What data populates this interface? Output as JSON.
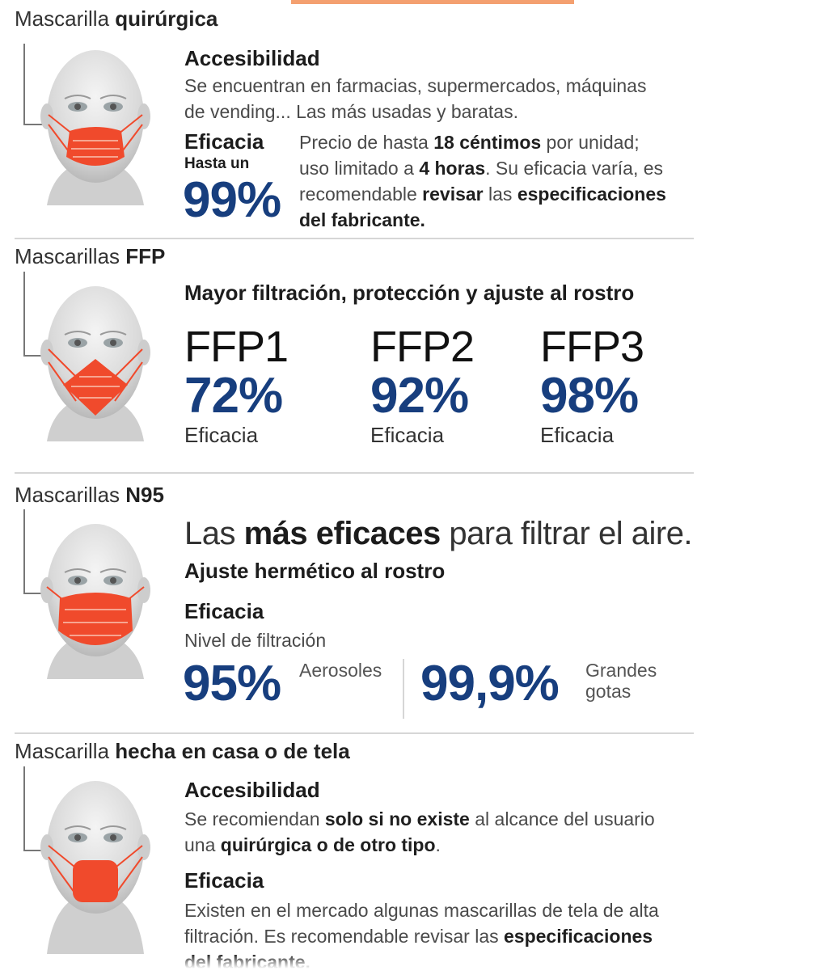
{
  "surgical": {
    "title_normal": "Mascarilla ",
    "title_bold": "quirúrgica",
    "access_head": "Accesibilidad",
    "access_l1": "Se encuentran en farmacias, supermercados, máquinas",
    "access_l2": "de vending... Las más usadas y baratas.",
    "efficacy_head": "Eficacia",
    "upto": "Hasta un",
    "pct": "99%",
    "p1a": "Precio de hasta ",
    "p1b": "18 céntimos",
    "p1c": " por unidad;",
    "p2a": "uso limitado a ",
    "p2b": "4 horas",
    "p2c": ". Su eficacia varía, es",
    "p3a": "recomendable ",
    "p3b": "revisar",
    "p3c": " las ",
    "p3d": "especificaciones",
    "p4": "del fabricante."
  },
  "ffp": {
    "title_normal": "Mascarillas ",
    "title_bold": "FFP",
    "subtitle": "Mayor filtración, protección y ajuste al rostro",
    "items": [
      {
        "name": "FFP1",
        "pct": "72%",
        "label": "Eficacia"
      },
      {
        "name": "FFP2",
        "pct": "92%",
        "label": "Eficacia"
      },
      {
        "name": "FFP3",
        "pct": "98%",
        "label": "Eficacia"
      }
    ]
  },
  "n95": {
    "title_normal": "Mascarillas ",
    "title_bold": "N95",
    "tag_a": "Las ",
    "tag_b": "más eficaces",
    "tag_c": " para filtrar el aire.",
    "fit": "Ajuste hermético al rostro",
    "efficacy_head": "Eficacia",
    "filter_level": "Nivel de filtración",
    "pct1": "95%",
    "lbl1": "Aerosoles",
    "pct2": "99,9%",
    "lbl2a": "Grandes",
    "lbl2b": "gotas"
  },
  "cloth": {
    "title_normal": "Mascarilla ",
    "title_bold": "hecha en casa o de tela",
    "access_head": "Accesibilidad",
    "l1a": "Se recomiendan ",
    "l1b": "solo si no existe",
    "l1c": " al alcance del usuario",
    "l2a": "una ",
    "l2b": "quirúrgica o de otro tipo",
    "l2c": ".",
    "efficacy_head": "Eficacia",
    "e1": "Existen en el mercado algunas mascarillas de tela de alta",
    "e2a": "filtración. Es recomendable revisar las ",
    "e2b": "especificaciones",
    "e3": "del fabricante."
  },
  "colors": {
    "mask": "#f04a2c",
    "accent_blue": "#173e7e",
    "top_bar": "#f28a4a"
  }
}
